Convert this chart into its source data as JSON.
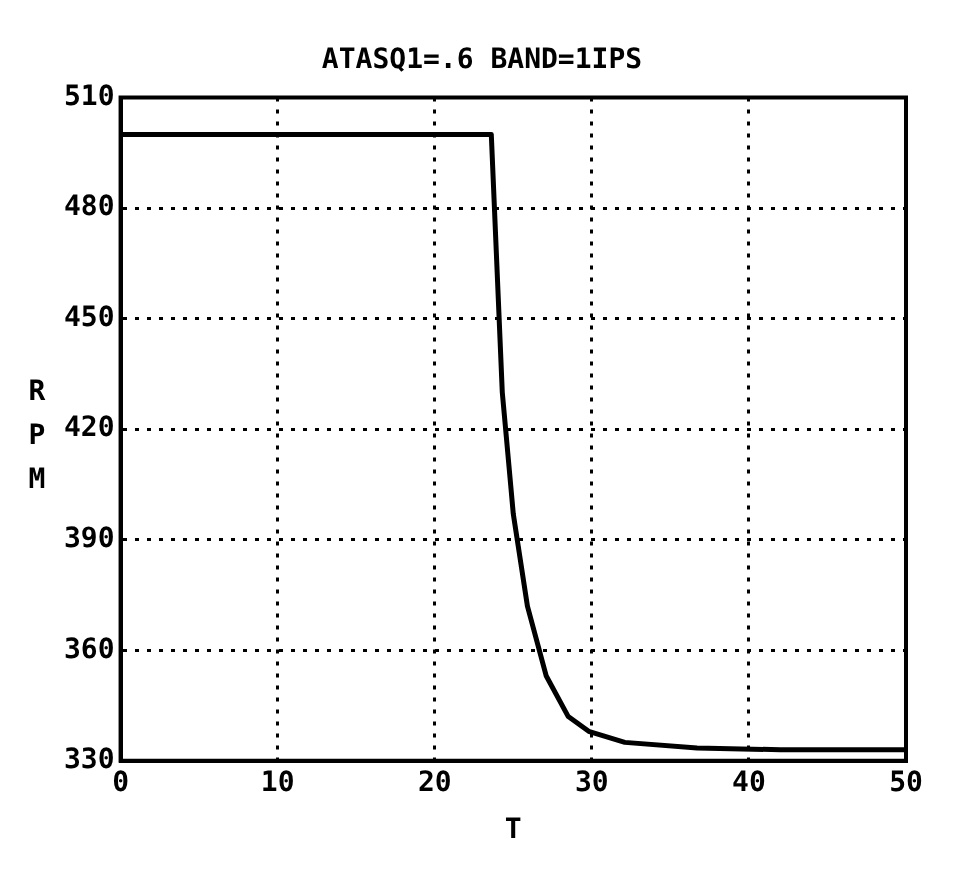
{
  "chart_data": {
    "type": "line",
    "title": "ATASQ1=.6 BAND=1IPS",
    "xlabel": "T",
    "ylabel": "RPM",
    "series": [
      {
        "color": "#000000",
        "x": [
          0,
          23.6,
          24.3,
          25.0,
          25.9,
          27.1,
          28.5,
          29.8,
          32.1,
          36.7,
          42,
          50
        ],
        "values": [
          500,
          500,
          430,
          397,
          372,
          353,
          342,
          338,
          335,
          333.5,
          333,
          333
        ]
      }
    ],
    "xlim": [
      0,
      50
    ],
    "xticks": [
      0,
      10,
      20,
      30,
      40,
      50
    ],
    "ylim": [
      330,
      510
    ],
    "yticks": [
      330,
      360,
      390,
      420,
      450,
      480,
      510
    ],
    "grid": true,
    "legend": false,
    "marker": "none",
    "line_style": "solid"
  }
}
